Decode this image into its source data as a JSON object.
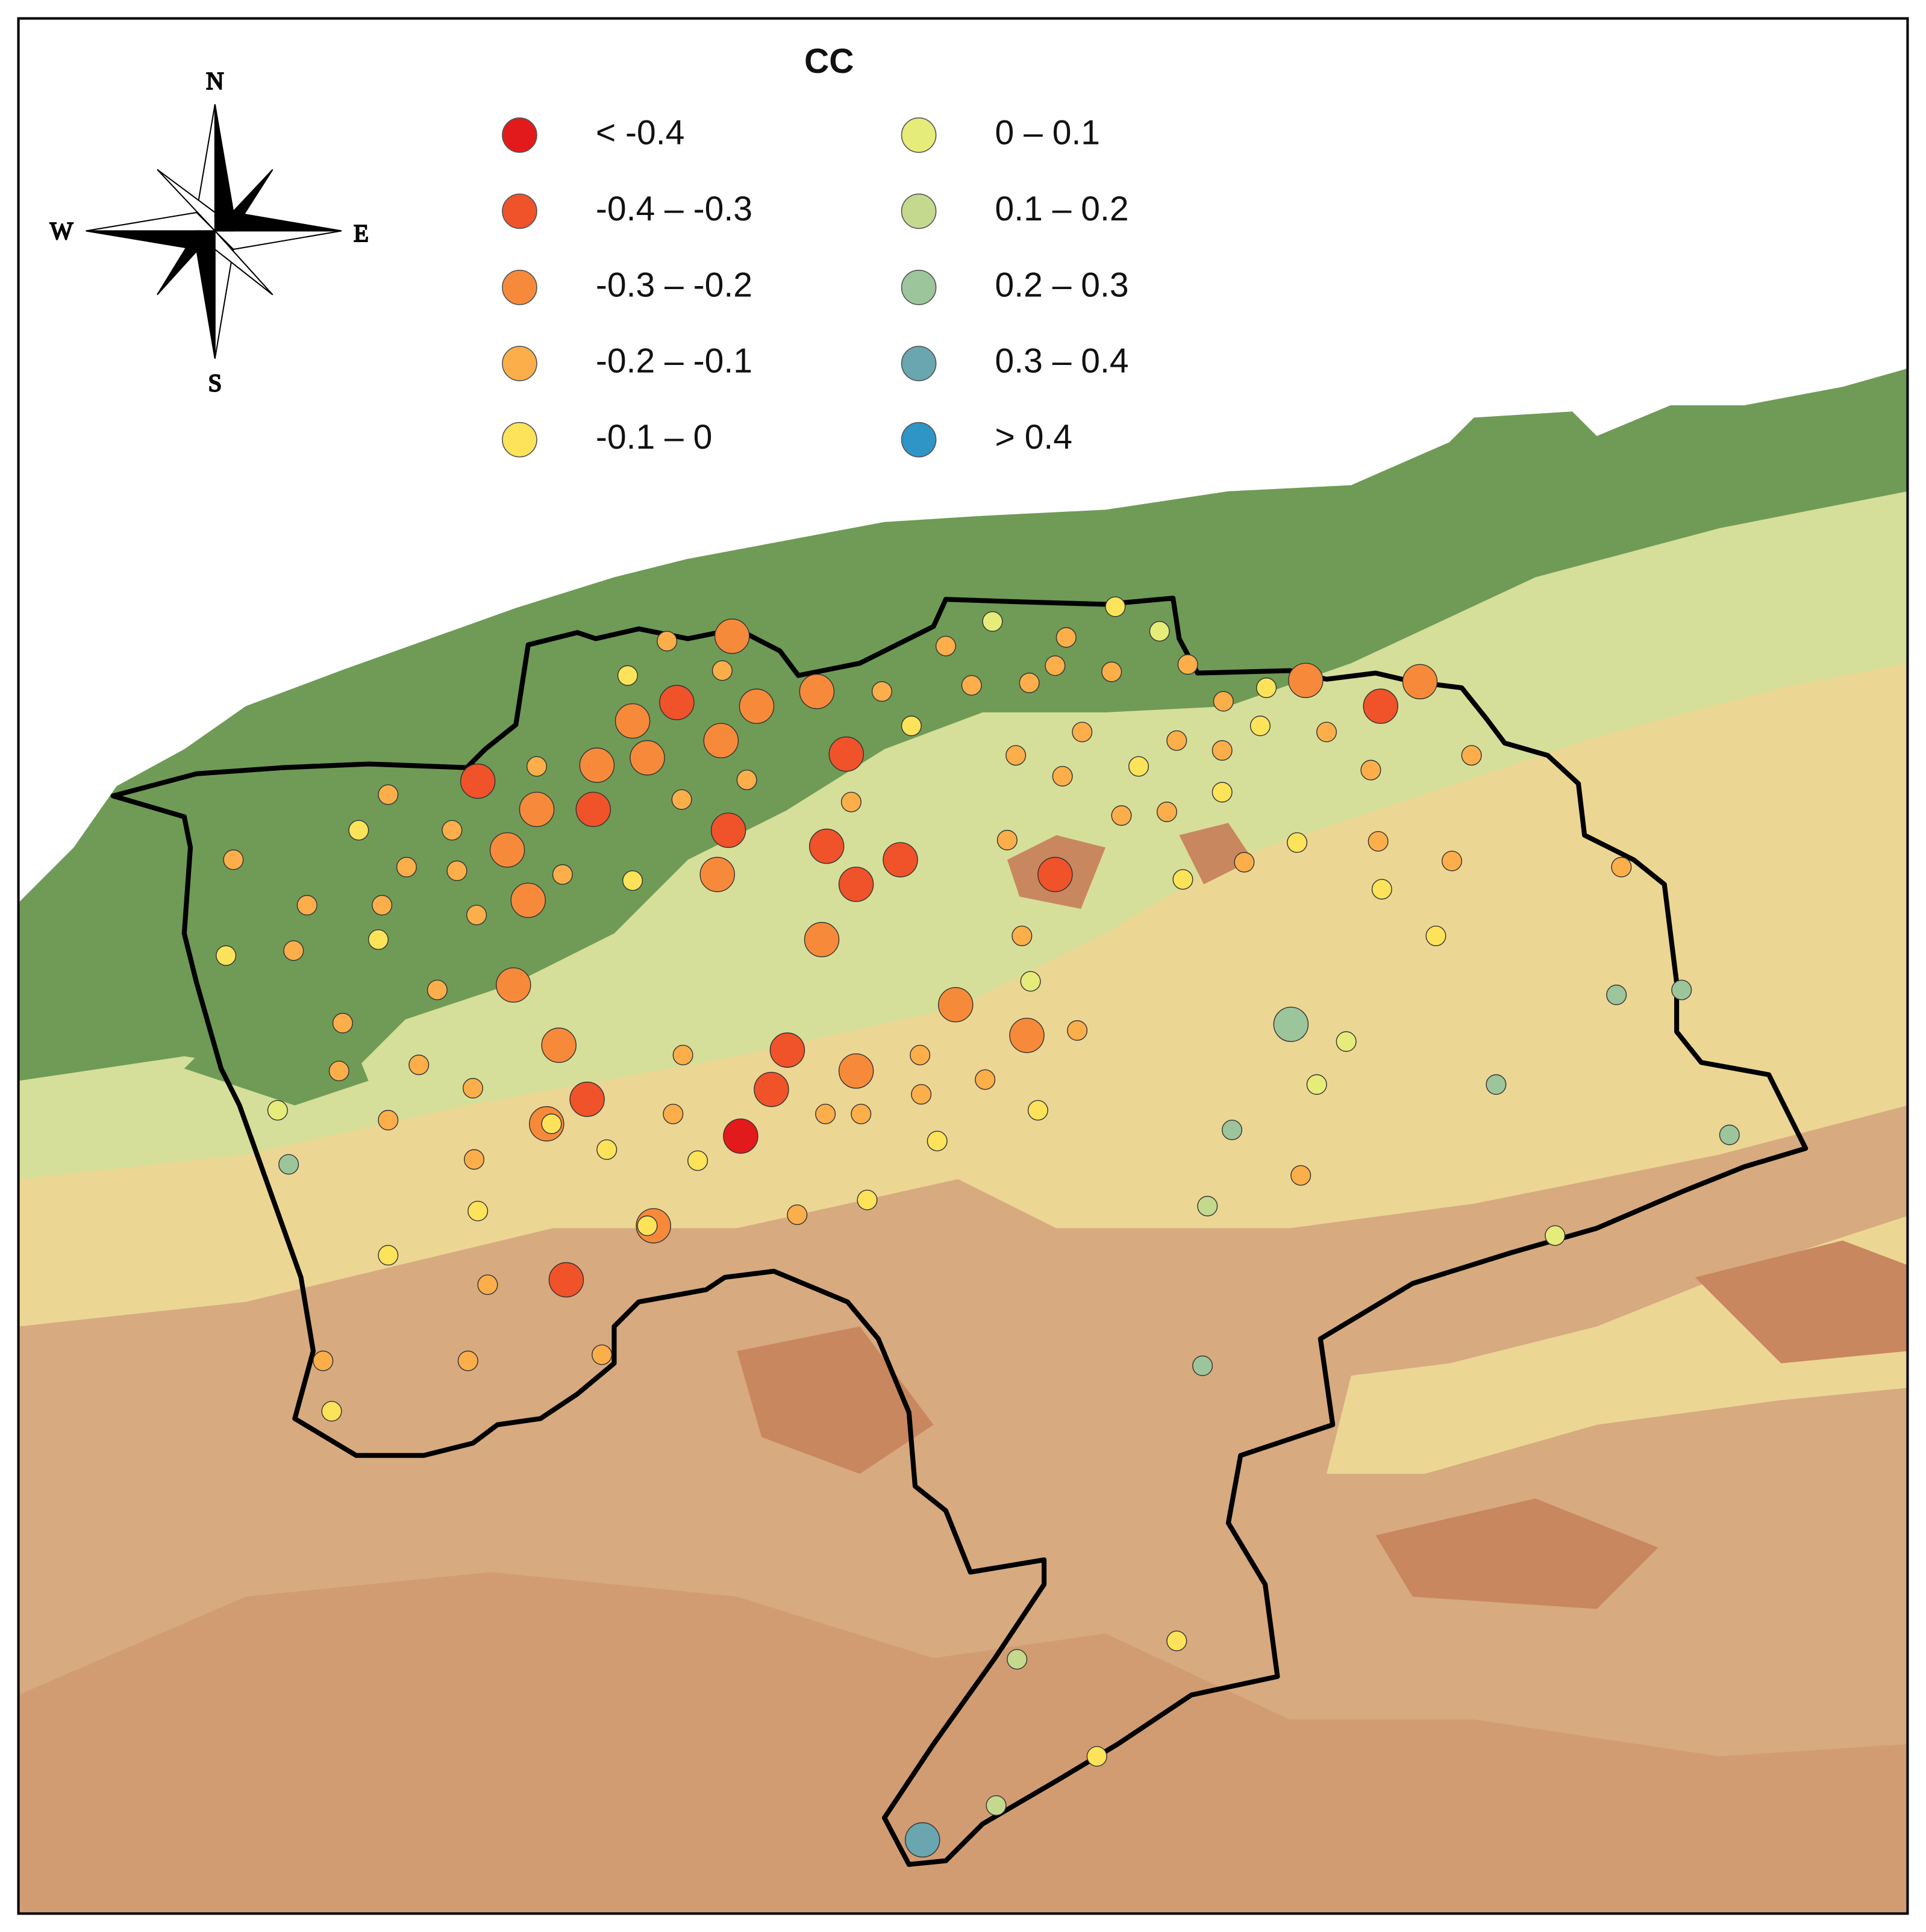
{
  "legend": {
    "title": "CC",
    "items": [
      {
        "label": "< -0.4",
        "color": "#e31a1c"
      },
      {
        "label": "-0.4 – -0.3",
        "color": "#f0522a"
      },
      {
        "label": "-0.3 – -0.2",
        "color": "#f78a3a"
      },
      {
        "label": "-0.2 – -0.1",
        "color": "#fbae4a"
      },
      {
        "label": "-0.1 – 0",
        "color": "#fde35a"
      },
      {
        "label": "0 – 0.1",
        "color": "#e6ec7a"
      },
      {
        "label": "0.1 – 0.2",
        "color": "#c5d98e"
      },
      {
        "label": "0.2 – 0.3",
        "color": "#9dc59c"
      },
      {
        "label": "0.3 – 0.4",
        "color": "#6aa6b0"
      },
      {
        "label": "> 0.4",
        "color": "#2e95c6"
      }
    ]
  },
  "compass": {
    "n": "N",
    "s": "S",
    "e": "E",
    "w": "W"
  }
}
